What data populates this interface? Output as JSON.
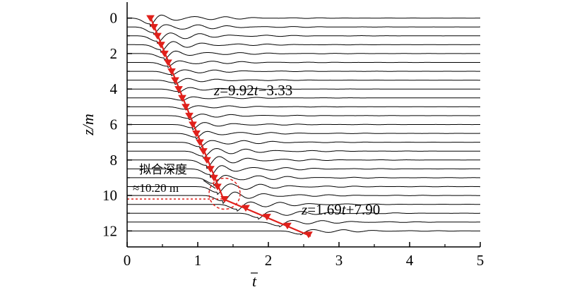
{
  "chart_data": {
    "type": "line",
    "xlabel": "t",
    "ylabel": "z/m",
    "xlim": [
      0,
      5
    ],
    "ylim": [
      12.9,
      -0.9
    ],
    "x_ticks": [
      "0",
      "1",
      "2",
      "3",
      "4",
      "5"
    ],
    "y_ticks": [
      "0",
      "2",
      "4",
      "6",
      "8",
      "10",
      "12"
    ],
    "trace_depths": [
      0,
      0.5,
      1,
      1.5,
      2,
      2.5,
      3,
      3.5,
      4,
      4.5,
      5,
      5.5,
      6,
      6.5,
      7,
      7.5,
      8,
      8.5,
      9,
      9.5,
      10,
      10.5,
      11,
      11.5,
      12
    ],
    "picked_points": {
      "x": [
        0.33,
        0.38,
        0.43,
        0.48,
        0.53,
        0.58,
        0.63,
        0.68,
        0.73,
        0.78,
        0.83,
        0.88,
        0.93,
        0.98,
        1.03,
        1.08,
        1.13,
        1.18,
        1.23,
        1.28,
        1.38,
        1.68,
        1.98,
        2.27,
        2.57
      ],
      "y": [
        0,
        0.5,
        1,
        1.5,
        2,
        2.5,
        3,
        3.5,
        4,
        4.5,
        5,
        5.5,
        6,
        6.5,
        7,
        7.5,
        8,
        8.5,
        9,
        9.5,
        10.2,
        10.7,
        11.2,
        11.7,
        12.2
      ]
    },
    "fit_lines": [
      {
        "label_z": "z",
        "label_rest": "=9.92",
        "label_t": "t",
        "label_tail": "−3.33",
        "slope": 9.92,
        "intercept": -3.33
      },
      {
        "label_z": "z",
        "label_rest": "=1.69",
        "label_t": "t",
        "label_tail": "+7.90",
        "slope": 1.69,
        "intercept": 7.9
      }
    ],
    "fit_depth": {
      "label_line1": "拟合深度",
      "label_line2": "≈10.20 m",
      "value": 10.2
    },
    "colors": {
      "traces": "#000000",
      "fit": "#e0201b",
      "marker": "#e0201b",
      "axis": "#000000"
    }
  }
}
